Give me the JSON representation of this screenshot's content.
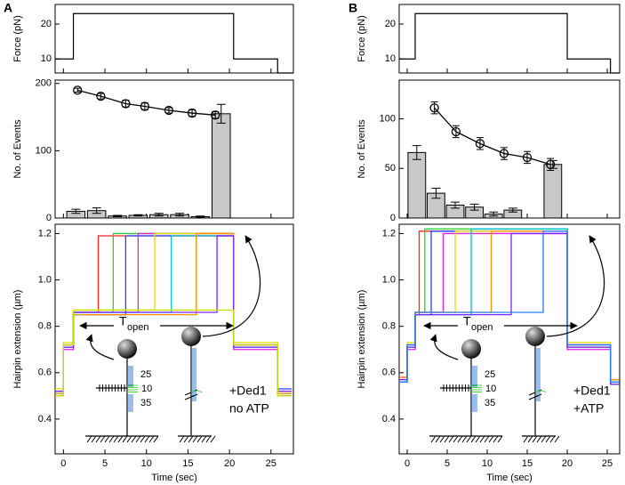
{
  "chart_data": [
    {
      "type": "step",
      "panel": "A",
      "ylabel": "Force (pN)",
      "xlim": [
        -1,
        27.7
      ],
      "ylim": [
        6,
        25.6
      ],
      "yticks": [
        10,
        20
      ],
      "x": [
        -1,
        1.2,
        1.2,
        20.5,
        20.5,
        25.8,
        25.8,
        27.7
      ],
      "values": [
        10,
        10,
        23,
        23,
        10,
        10,
        6,
        6
      ],
      "color": "#000000"
    },
    {
      "type": "histogram-fit",
      "ylabel": "No. of Events",
      "xlim": [
        -1,
        27.7
      ],
      "ylim": [
        0,
        205
      ],
      "yticks": [
        0,
        100,
        200
      ],
      "bars": {
        "x": [
          1.5,
          4,
          6.5,
          9,
          11.5,
          14,
          16.5,
          19
        ],
        "values": [
          10,
          11,
          3,
          4,
          5,
          5,
          2,
          155
        ],
        "errors": [
          3,
          4,
          1,
          1,
          2,
          2,
          1,
          14
        ],
        "color": "#c8c8c8"
      },
      "points": {
        "x": [
          1.7,
          4.5,
          7.5,
          9.8,
          12.7,
          15.5,
          18.3
        ],
        "values": [
          190,
          181,
          170,
          166,
          160,
          156,
          153
        ],
        "errors": [
          3,
          4,
          5,
          5,
          4,
          5,
          5
        ]
      }
    },
    {
      "type": "line",
      "ylabel": "Hairpin extension (µm)",
      "xlabel": "Time (sec)",
      "xlim": [
        -1,
        27.7
      ],
      "ylim": [
        0.25,
        1.24
      ],
      "xticks": [
        0,
        5,
        10,
        15,
        20,
        25
      ],
      "yticks": [
        0.4,
        0.6,
        0.8,
        {
          "value": 1,
          "label": "1.0"
        },
        1.2
      ],
      "interval_label": "T",
      "interval_label_sub": "open",
      "annotations": [
        "25",
        "10",
        "35"
      ],
      "note": [
        "+Ded1",
        "no ATP"
      ],
      "series": [
        {
          "color": "#ff2020",
          "x": [
            -1,
            0,
            0,
            1.2,
            1.2,
            4.2,
            4.2,
            20.5,
            20.5,
            25.8,
            25.8,
            27.5
          ],
          "values": [
            0.5,
            0.5,
            0.72,
            0.72,
            0.86,
            0.86,
            1.19,
            1.19,
            0.72,
            0.72,
            0.52,
            0.52
          ]
        },
        {
          "color": "#30d030",
          "x": [
            -1,
            0,
            0,
            1.2,
            1.2,
            6,
            6,
            20.5,
            20.5,
            25.8,
            25.8,
            27.5
          ],
          "values": [
            0.51,
            0.51,
            0.71,
            0.71,
            0.86,
            0.86,
            1.2,
            1.2,
            0.71,
            0.71,
            0.51,
            0.51
          ]
        },
        {
          "color": "#2040ff",
          "x": [
            -1,
            0,
            0,
            1.2,
            1.2,
            7.5,
            7.5,
            20.5,
            20.5,
            25.8,
            25.8,
            27.5
          ],
          "values": [
            0.52,
            0.52,
            0.72,
            0.72,
            0.85,
            0.85,
            1.19,
            1.19,
            0.72,
            0.72,
            0.53,
            0.53
          ]
        },
        {
          "color": "#e020e0",
          "x": [
            -1,
            0,
            0,
            1.2,
            1.2,
            9,
            9,
            20.5,
            20.5,
            25.8,
            25.8,
            27.5
          ],
          "values": [
            0.5,
            0.5,
            0.7,
            0.7,
            0.86,
            0.86,
            1.2,
            1.2,
            0.7,
            0.7,
            0.5,
            0.5
          ]
        },
        {
          "color": "#e0e000",
          "x": [
            -1,
            0,
            0,
            1.2,
            1.2,
            11,
            11,
            20.5,
            20.5,
            25.8,
            25.8,
            27.5
          ],
          "values": [
            0.53,
            0.53,
            0.73,
            0.73,
            0.87,
            0.87,
            1.2,
            1.2,
            0.73,
            0.73,
            0.52,
            0.52
          ]
        },
        {
          "color": "#00c0d0",
          "x": [
            -1,
            0,
            0,
            1.2,
            1.2,
            13,
            13,
            20.5,
            20.5,
            25.8,
            25.8,
            27.5
          ],
          "values": [
            0.5,
            0.5,
            0.71,
            0.71,
            0.86,
            0.86,
            1.19,
            1.19,
            0.71,
            0.71,
            0.5,
            0.5
          ]
        },
        {
          "color": "#ff9000",
          "x": [
            -1,
            0,
            0,
            1.2,
            1.2,
            16,
            16,
            20.5,
            20.5,
            25.8,
            25.8,
            27.5
          ],
          "values": [
            0.51,
            0.51,
            0.72,
            0.72,
            0.85,
            0.85,
            1.2,
            1.2,
            0.72,
            0.72,
            0.51,
            0.51
          ]
        },
        {
          "color": "#8020ff",
          "x": [
            -1,
            0,
            0,
            1.2,
            1.2,
            18.5,
            18.5,
            20.5,
            20.5,
            25.8,
            25.8,
            27.5
          ],
          "values": [
            0.52,
            0.52,
            0.71,
            0.71,
            0.86,
            0.86,
            1.19,
            1.19,
            0.71,
            0.71,
            0.52,
            0.52
          ]
        },
        {
          "color": "#c8e000",
          "x": [
            -1,
            0,
            0,
            1.2,
            1.2,
            20.5,
            20.5,
            25.8,
            25.8,
            27.5
          ],
          "values": [
            0.5,
            0.5,
            0.72,
            0.72,
            0.87,
            0.87,
            0.72,
            0.72,
            0.5,
            0.5
          ]
        }
      ]
    },
    {
      "type": "step",
      "panel": "B",
      "ylabel": "Force (pN)",
      "xlim": [
        -1,
        26.55
      ],
      "ylim": [
        6,
        25.6
      ],
      "yticks": [
        10,
        20
      ],
      "x": [
        -1,
        1,
        1,
        20,
        20,
        25.4,
        25.4,
        26.55
      ],
      "values": [
        10,
        10,
        23,
        23,
        10,
        10,
        6,
        6
      ],
      "color": "#000000"
    },
    {
      "type": "histogram-fit",
      "ylabel": "No. of Events",
      "xlim": [
        -1,
        26.55
      ],
      "ylim": [
        0,
        139
      ],
      "yticks": [
        0,
        50,
        100
      ],
      "bars": {
        "x": [
          1.2,
          3.6,
          6,
          8.4,
          10.8,
          13.2,
          18.2
        ],
        "values": [
          66,
          25,
          13,
          11,
          4,
          8,
          54
        ],
        "errors": [
          7,
          5,
          3,
          3,
          2,
          2,
          4
        ],
        "color": "#c8c8c8"
      },
      "points": {
        "x": [
          3.4,
          6.1,
          9.1,
          12.1,
          15,
          17.9
        ],
        "values": [
          111,
          87,
          75,
          65,
          61,
          54
        ],
        "errors": [
          6,
          6,
          6,
          6,
          6,
          6
        ]
      }
    },
    {
      "type": "line",
      "ylabel": "Hairpin extension (µm)",
      "xlabel": "Time (sec)",
      "xlim": [
        -1,
        26.55
      ],
      "ylim": [
        0.25,
        1.24
      ],
      "xticks": [
        0,
        5,
        10,
        15,
        20,
        25
      ],
      "yticks": [
        0.4,
        0.6,
        0.8,
        {
          "value": 1,
          "label": "1.0"
        },
        1.2
      ],
      "interval_label": "T",
      "interval_label_sub": "open",
      "annotations": [
        "25",
        "10",
        "35"
      ],
      "note": [
        "+Ded1",
        "+ATP"
      ],
      "series": [
        {
          "color": "#ff2020",
          "x": [
            -1,
            0,
            0,
            1,
            1,
            1.5,
            1.5,
            20,
            20,
            25.4,
            25.4,
            26.5
          ],
          "values": [
            0.58,
            0.58,
            0.72,
            0.72,
            0.85,
            0.85,
            1.21,
            1.21,
            0.72,
            0.72,
            0.56,
            0.56
          ]
        },
        {
          "color": "#30d030",
          "x": [
            -1,
            0,
            0,
            1,
            1,
            2.2,
            2.2,
            20,
            20,
            25.4,
            25.4,
            26.5
          ],
          "values": [
            0.57,
            0.57,
            0.71,
            0.71,
            0.86,
            0.86,
            1.22,
            1.22,
            0.71,
            0.71,
            0.55,
            0.55
          ]
        },
        {
          "color": "#2040ff",
          "x": [
            -1,
            0,
            0,
            1,
            1,
            3,
            3,
            20,
            20,
            25.4,
            25.4,
            26.5
          ],
          "values": [
            0.56,
            0.56,
            0.72,
            0.72,
            0.85,
            0.85,
            1.21,
            1.21,
            0.72,
            0.72,
            0.57,
            0.57
          ]
        },
        {
          "color": "#e020e0",
          "x": [
            -1,
            0,
            0,
            1,
            1,
            4.5,
            4.5,
            20,
            20,
            25.4,
            25.4,
            26.5
          ],
          "values": [
            0.58,
            0.58,
            0.7,
            0.7,
            0.86,
            0.86,
            1.2,
            1.2,
            0.7,
            0.7,
            0.56,
            0.56
          ]
        },
        {
          "color": "#e0e000",
          "x": [
            -1,
            0,
            0,
            1,
            1,
            6,
            6,
            20,
            20,
            25.4,
            25.4,
            26.5
          ],
          "values": [
            0.57,
            0.57,
            0.73,
            0.73,
            0.86,
            0.86,
            1.21,
            1.21,
            0.73,
            0.73,
            0.55,
            0.55
          ]
        },
        {
          "color": "#00c0d0",
          "x": [
            -1,
            0,
            0,
            1,
            1,
            8,
            8,
            20,
            20,
            25.4,
            25.4,
            26.5
          ],
          "values": [
            0.56,
            0.56,
            0.71,
            0.71,
            0.85,
            0.85,
            1.22,
            1.22,
            0.71,
            0.71,
            0.56,
            0.56
          ]
        },
        {
          "color": "#ff9000",
          "x": [
            -1,
            0,
            0,
            1,
            1,
            10.5,
            10.5,
            20,
            20,
            25.4,
            25.4,
            26.5
          ],
          "values": [
            0.58,
            0.58,
            0.72,
            0.72,
            0.86,
            0.86,
            1.21,
            1.21,
            0.72,
            0.72,
            0.57,
            0.57
          ]
        },
        {
          "color": "#8020ff",
          "x": [
            -1,
            0,
            0,
            1,
            1,
            13,
            13,
            20,
            20,
            25.4,
            25.4,
            26.5
          ],
          "values": [
            0.57,
            0.57,
            0.71,
            0.71,
            0.85,
            0.85,
            1.2,
            1.2,
            0.71,
            0.71,
            0.55,
            0.55
          ]
        },
        {
          "color": "#2080ff",
          "x": [
            -1,
            0,
            0,
            1,
            1,
            17,
            17,
            20,
            20,
            25.4,
            25.4,
            26.5
          ],
          "values": [
            0.56,
            0.56,
            0.72,
            0.72,
            0.86,
            0.86,
            1.21,
            1.21,
            0.72,
            0.72,
            0.56,
            0.56
          ]
        }
      ]
    }
  ]
}
